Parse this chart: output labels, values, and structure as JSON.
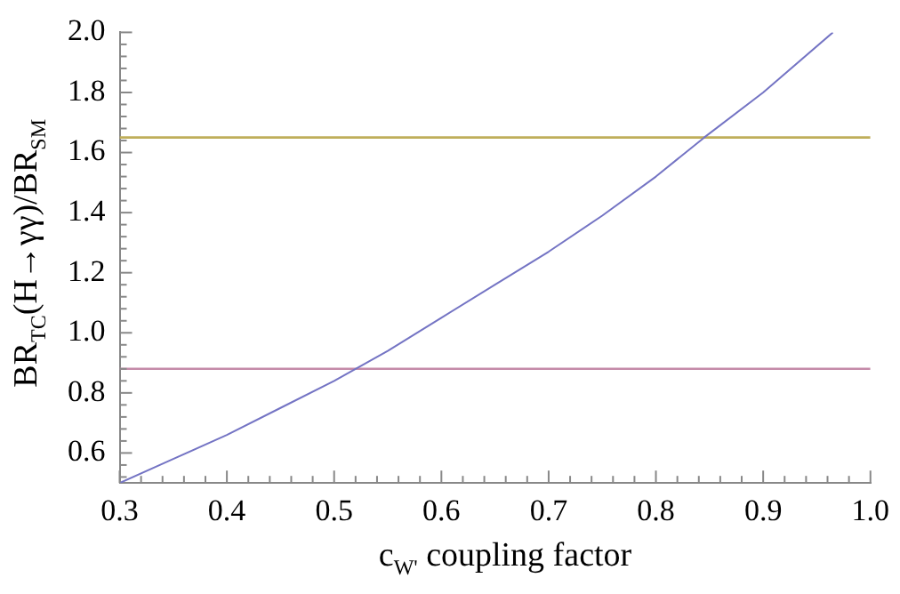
{
  "chart_data": {
    "type": "line",
    "xlabel": "c$_{W'}$ coupling factor",
    "ylabel": "BR$_{TC}$(H→γγ)/BR$_{SM}$",
    "x": [
      0.3,
      0.35,
      0.4,
      0.45,
      0.5,
      0.55,
      0.6,
      0.65,
      0.7,
      0.75,
      0.8,
      0.845,
      0.9,
      0.965
    ],
    "series": [
      {
        "color": "#7474c4",
        "values": [
          0.5,
          0.58,
          0.66,
          0.75,
          0.84,
          0.94,
          1.05,
          1.16,
          1.27,
          1.39,
          1.52,
          1.65,
          1.8,
          2.0
        ]
      }
    ],
    "xlim": [
      0.3,
      1.0
    ],
    "xticks": [
      0.3,
      0.4,
      0.5,
      0.6,
      0.7,
      0.8,
      0.9,
      {
        "value": 1,
        "label": "1.0"
      }
    ],
    "ylim": [
      0.5,
      2.0
    ],
    "yticks": [
      0.6,
      0.8,
      {
        "value": 1,
        "label": "1.0"
      },
      1.2,
      1.4,
      1.6,
      1.8,
      {
        "value": 2,
        "label": "2.0"
      }
    ],
    "ref_lines": [
      {
        "axis": "y",
        "value": 1.65,
        "color": "#bfae5a"
      },
      {
        "axis": "y",
        "value": 0.88,
        "color": "#c48aa8"
      }
    ],
    "grid": false,
    "legend": false,
    "marker": "none",
    "line_style": "solid"
  }
}
